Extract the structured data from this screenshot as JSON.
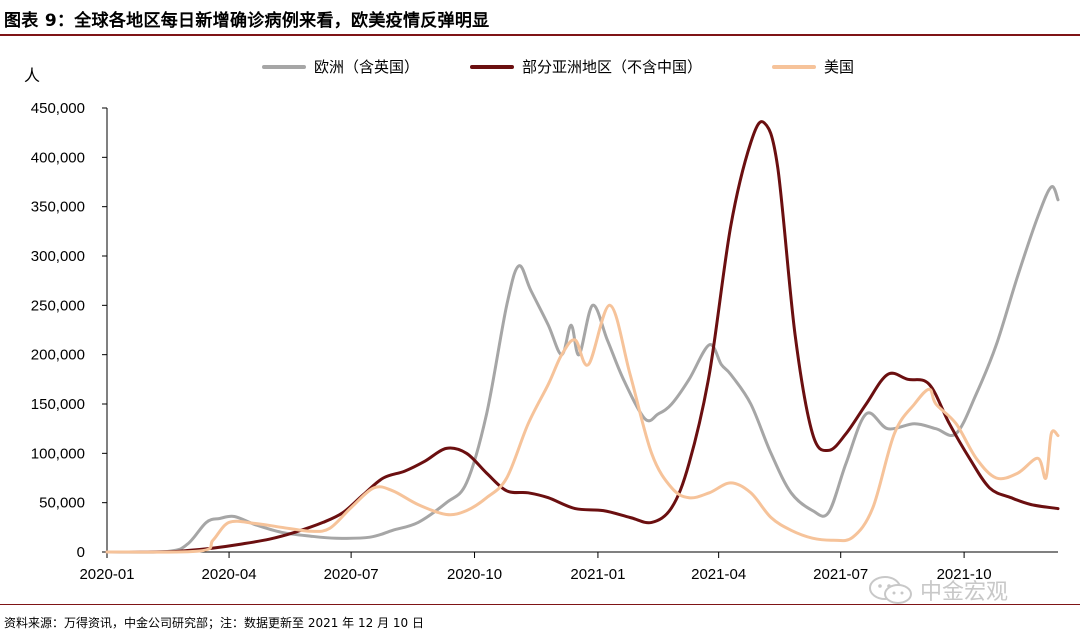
{
  "figure": {
    "title": "图表 9：全球各地区每日新增确诊病例来看，欧美疫情反弹明显",
    "unit": "人",
    "source": "资料来源：万得资讯，中金公司研究部；注：数据更新至 2021 年 12 月 10 日",
    "watermark": "中金宏观",
    "watermark_icon": "wechat-icon"
  },
  "colors": {
    "europe": "#a6a6a6",
    "asia": "#6b0f10",
    "usa": "#f6c39a",
    "accent_rule": "#7f1416"
  },
  "chart_data": {
    "type": "line",
    "title": "图表 9：全球各地区每日新增确诊病例来看，欧美疫情反弹明显",
    "xlabel": "",
    "ylabel": "人",
    "ylim": [
      0,
      450000
    ],
    "yticks": [
      0,
      50000,
      100000,
      150000,
      200000,
      250000,
      300000,
      350000,
      400000,
      450000
    ],
    "ytick_labels": [
      "0",
      "50,000",
      "100,000",
      "150,000",
      "200,000",
      "250,000",
      "300,000",
      "350,000",
      "400,000",
      "450,000"
    ],
    "xlim": [
      "2020-01-01",
      "2021-12-10"
    ],
    "xticks": [
      "2020-01-01",
      "2020-04-01",
      "2020-07-01",
      "2020-10-01",
      "2021-01-01",
      "2021-04-01",
      "2021-07-01",
      "2021-10-01"
    ],
    "xtick_labels": [
      "2020-01",
      "2020-04",
      "2020-07",
      "2020-10",
      "2021-01",
      "2021-04",
      "2021-07",
      "2021-10"
    ],
    "grid": false,
    "legend_position": "top",
    "series": [
      {
        "name": "欧洲（含英国）",
        "color_key": "europe",
        "points": [
          [
            "2020-01-01",
            0
          ],
          [
            "2020-02-15",
            500
          ],
          [
            "2020-03-01",
            8000
          ],
          [
            "2020-03-15",
            30000
          ],
          [
            "2020-03-25",
            34000
          ],
          [
            "2020-04-05",
            36000
          ],
          [
            "2020-04-20",
            28000
          ],
          [
            "2020-05-10",
            20000
          ],
          [
            "2020-06-01",
            16000
          ],
          [
            "2020-06-20",
            14000
          ],
          [
            "2020-07-15",
            15000
          ],
          [
            "2020-08-01",
            22000
          ],
          [
            "2020-08-20",
            30000
          ],
          [
            "2020-09-10",
            50000
          ],
          [
            "2020-09-25",
            70000
          ],
          [
            "2020-10-10",
            140000
          ],
          [
            "2020-10-25",
            250000
          ],
          [
            "2020-11-03",
            290000
          ],
          [
            "2020-11-12",
            265000
          ],
          [
            "2020-11-25",
            230000
          ],
          [
            "2020-12-05",
            200000
          ],
          [
            "2020-12-12",
            230000
          ],
          [
            "2020-12-18",
            200000
          ],
          [
            "2020-12-28",
            250000
          ],
          [
            "2021-01-08",
            215000
          ],
          [
            "2021-01-20",
            175000
          ],
          [
            "2021-02-05",
            135000
          ],
          [
            "2021-02-15",
            140000
          ],
          [
            "2021-02-25",
            150000
          ],
          [
            "2021-03-10",
            175000
          ],
          [
            "2021-03-25",
            210000
          ],
          [
            "2021-04-03",
            190000
          ],
          [
            "2021-04-10",
            180000
          ],
          [
            "2021-04-25",
            150000
          ],
          [
            "2021-05-10",
            100000
          ],
          [
            "2021-05-25",
            60000
          ],
          [
            "2021-06-10",
            42000
          ],
          [
            "2021-06-22",
            40000
          ],
          [
            "2021-07-05",
            90000
          ],
          [
            "2021-07-20",
            140000
          ],
          [
            "2021-08-05",
            125000
          ],
          [
            "2021-08-25",
            130000
          ],
          [
            "2021-09-10",
            125000
          ],
          [
            "2021-09-25",
            120000
          ],
          [
            "2021-10-10",
            160000
          ],
          [
            "2021-10-25",
            210000
          ],
          [
            "2021-11-10",
            280000
          ],
          [
            "2021-11-25",
            340000
          ],
          [
            "2021-12-05",
            370000
          ],
          [
            "2021-12-10",
            357000
          ]
        ]
      },
      {
        "name": "部分亚洲地区（不含中国）",
        "color_key": "asia",
        "points": [
          [
            "2020-01-01",
            0
          ],
          [
            "2020-02-15",
            300
          ],
          [
            "2020-03-01",
            1500
          ],
          [
            "2020-03-20",
            4000
          ],
          [
            "2020-04-10",
            8000
          ],
          [
            "2020-05-01",
            13000
          ],
          [
            "2020-05-20",
            20000
          ],
          [
            "2020-06-10",
            30000
          ],
          [
            "2020-06-25",
            40000
          ],
          [
            "2020-07-10",
            58000
          ],
          [
            "2020-07-25",
            75000
          ],
          [
            "2020-08-10",
            82000
          ],
          [
            "2020-08-25",
            92000
          ],
          [
            "2020-09-10",
            105000
          ],
          [
            "2020-09-25",
            100000
          ],
          [
            "2020-10-10",
            80000
          ],
          [
            "2020-10-25",
            62000
          ],
          [
            "2020-11-10",
            60000
          ],
          [
            "2020-11-25",
            55000
          ],
          [
            "2020-12-15",
            44000
          ],
          [
            "2021-01-05",
            42000
          ],
          [
            "2021-01-25",
            35000
          ],
          [
            "2021-02-10",
            30000
          ],
          [
            "2021-02-25",
            45000
          ],
          [
            "2021-03-10",
            90000
          ],
          [
            "2021-03-25",
            180000
          ],
          [
            "2021-04-10",
            330000
          ],
          [
            "2021-04-25",
            415000
          ],
          [
            "2021-05-05",
            435000
          ],
          [
            "2021-05-15",
            390000
          ],
          [
            "2021-05-28",
            220000
          ],
          [
            "2021-06-10",
            120000
          ],
          [
            "2021-06-22",
            103000
          ],
          [
            "2021-07-05",
            120000
          ],
          [
            "2021-07-20",
            150000
          ],
          [
            "2021-08-05",
            180000
          ],
          [
            "2021-08-20",
            175000
          ],
          [
            "2021-09-05",
            170000
          ],
          [
            "2021-09-20",
            130000
          ],
          [
            "2021-10-05",
            95000
          ],
          [
            "2021-10-20",
            65000
          ],
          [
            "2021-11-05",
            55000
          ],
          [
            "2021-11-20",
            48000
          ],
          [
            "2021-12-10",
            44000
          ]
        ]
      },
      {
        "name": "美国",
        "color_key": "usa",
        "points": [
          [
            "2020-01-01",
            0
          ],
          [
            "2020-03-10",
            1000
          ],
          [
            "2020-03-20",
            12000
          ],
          [
            "2020-04-01",
            30000
          ],
          [
            "2020-04-20",
            29000
          ],
          [
            "2020-05-10",
            25000
          ],
          [
            "2020-06-01",
            21000
          ],
          [
            "2020-06-15",
            24000
          ],
          [
            "2020-07-01",
            45000
          ],
          [
            "2020-07-18",
            65000
          ],
          [
            "2020-08-01",
            62000
          ],
          [
            "2020-08-20",
            48000
          ],
          [
            "2020-09-10",
            38000
          ],
          [
            "2020-09-25",
            42000
          ],
          [
            "2020-10-10",
            55000
          ],
          [
            "2020-10-25",
            75000
          ],
          [
            "2020-11-10",
            130000
          ],
          [
            "2020-11-25",
            170000
          ],
          [
            "2020-12-05",
            200000
          ],
          [
            "2020-12-15",
            215000
          ],
          [
            "2020-12-25",
            190000
          ],
          [
            "2021-01-10",
            250000
          ],
          [
            "2021-01-25",
            180000
          ],
          [
            "2021-02-10",
            100000
          ],
          [
            "2021-02-25",
            65000
          ],
          [
            "2021-03-10",
            55000
          ],
          [
            "2021-03-25",
            60000
          ],
          [
            "2021-04-10",
            70000
          ],
          [
            "2021-04-25",
            60000
          ],
          [
            "2021-05-10",
            35000
          ],
          [
            "2021-05-25",
            22000
          ],
          [
            "2021-06-10",
            14000
          ],
          [
            "2021-06-25",
            12000
          ],
          [
            "2021-07-10",
            15000
          ],
          [
            "2021-07-25",
            45000
          ],
          [
            "2021-08-10",
            120000
          ],
          [
            "2021-08-25",
            150000
          ],
          [
            "2021-09-05",
            165000
          ],
          [
            "2021-09-10",
            150000
          ],
          [
            "2021-09-25",
            130000
          ],
          [
            "2021-10-10",
            95000
          ],
          [
            "2021-10-25",
            75000
          ],
          [
            "2021-11-10",
            80000
          ],
          [
            "2021-11-25",
            95000
          ],
          [
            "2021-12-01",
            75000
          ],
          [
            "2021-12-05",
            120000
          ],
          [
            "2021-12-10",
            118000
          ]
        ]
      }
    ]
  }
}
